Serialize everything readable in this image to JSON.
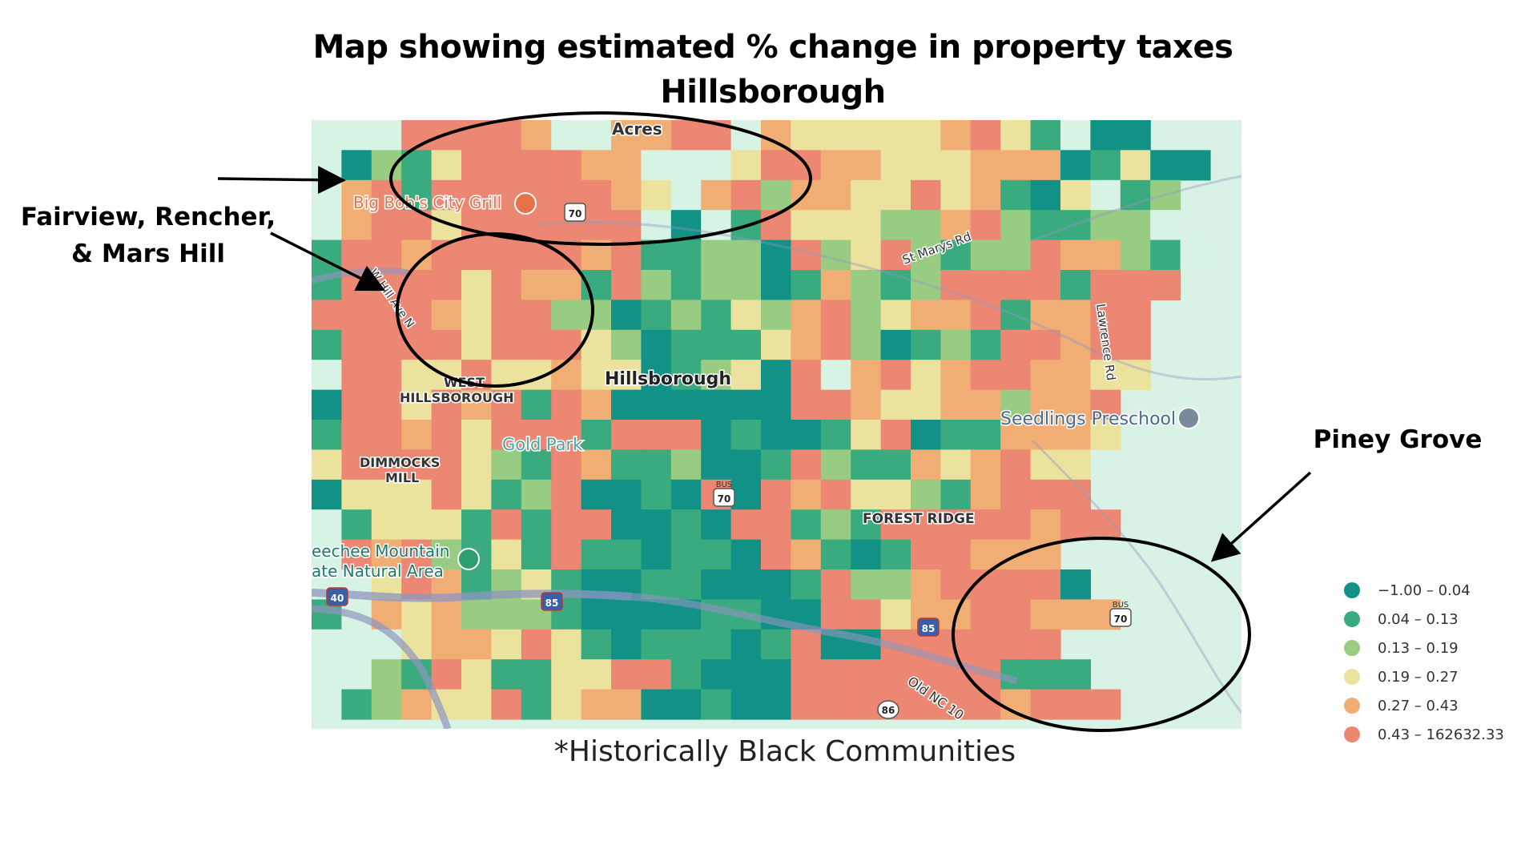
{
  "title": {
    "line1": "Map showing estimated % change in property taxes",
    "line2": "Hillsborough"
  },
  "annotations": {
    "fairview": [
      "Fairview, Rencher,",
      "& Mars Hill"
    ],
    "piney_grove": "Piney Grove"
  },
  "footnote": "*Historically Black Communities",
  "map_labels": {
    "acres": "Acres",
    "big_bobs": "Big Bob's City Grill",
    "us70_top": "70",
    "w_hill_ave": "W Hill Ave N",
    "st_marys": "St Marys Rd",
    "lawrence": "Lawrence Rd",
    "west_hillsborough_1": "WEST",
    "west_hillsborough_2": "HILLSBOROUGH",
    "hillsborough": "Hillsborough",
    "seedlings": "Seedlings Preschool",
    "gold_park": "Gold Park",
    "dimmocks_1": "DIMMOCKS",
    "dimmocks_2": "MILL",
    "bus70_mid": "70",
    "bus_mid": "BUS",
    "forest_ridge": "FOREST RIDGE",
    "occoneechee_1": "eechee Mountain",
    "occoneechee_2": "ate Natural Area",
    "i40": "40",
    "i85_left": "85",
    "i85_right": "85",
    "bus70_right": "70",
    "bus_right": "BUS",
    "old_nc10": "Old NC 10",
    "route86": "86"
  },
  "legend": {
    "items": [
      {
        "label": "−1.00 – 0.04",
        "color": "#129287"
      },
      {
        "label": "0.04 – 0.13",
        "color": "#3aab7e"
      },
      {
        "label": "0.13 – 0.19",
        "color": "#98cc82"
      },
      {
        "label": "0.19 – 0.27",
        "color": "#ebe29d"
      },
      {
        "label": "0.27 – 0.43",
        "color": "#f0ae75"
      },
      {
        "label": "0.43 – 162632.33",
        "color": "#ec8773"
      }
    ]
  },
  "colors": {
    "c0": "#129287",
    "c1": "#3aab7e",
    "c2": "#98cc82",
    "c3": "#ebe29d",
    "c4": "#f0ae75",
    "c5": "#ec8773",
    "base": "#d6f3e4",
    "road": "#8f96c0"
  },
  "grid": [
    "BBB55554BB4455B4333334531B00",
    "B0213555544BBB3554433344401300",
    "B45155555543B4524433534103B12",
    "B4553555555B0B15333224521122B",
    "15545555545112205235212254421B",
    "15555354415212201421255551555",
    "5555435522012132452344514455",
    "1555535553201113452012155455",
    "B5533533433012305B4534554433",
    "055354515400000055433442445",
    "155453555155501001350114443",
    "35555321541120015211434533",
    "03335312500105054533214555",
    "B13331515500105512155555455",
    "B545213151101105410155444",
    "BB354123100110001522455550",
    "1B4342221000011005534455444",
    "BBB3443531011101500555555",
    "BB215311335510005555555111",
    "B12433513440010055555554555"
  ]
}
